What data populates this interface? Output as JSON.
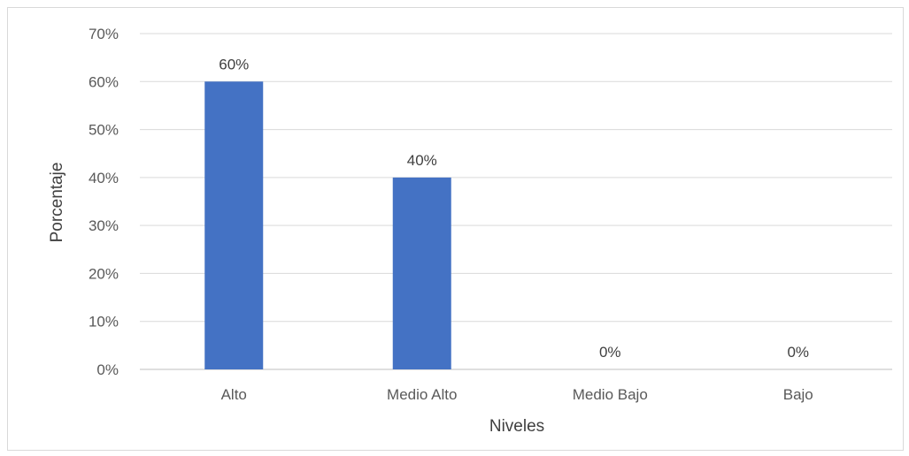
{
  "chart_data": {
    "type": "bar",
    "title": "",
    "categories": [
      "Alto",
      "Medio Alto",
      "Medio Bajo",
      "Bajo"
    ],
    "series": [
      {
        "values": [
          60,
          40,
          0,
          0
        ],
        "color": "#4472c4"
      }
    ],
    "data_labels": [
      "60%",
      "40%",
      "0%",
      "0%"
    ],
    "xlabel": "Niveles",
    "ylabel": "Porcentaje",
    "ylim": [
      0,
      70
    ],
    "yticks": [
      0,
      10,
      20,
      30,
      40,
      50,
      60,
      70
    ],
    "ytick_labels": [
      "0%",
      "10%",
      "20%",
      "30%",
      "40%",
      "50%",
      "60%",
      "70%"
    ],
    "grid": true,
    "legend": "none"
  }
}
